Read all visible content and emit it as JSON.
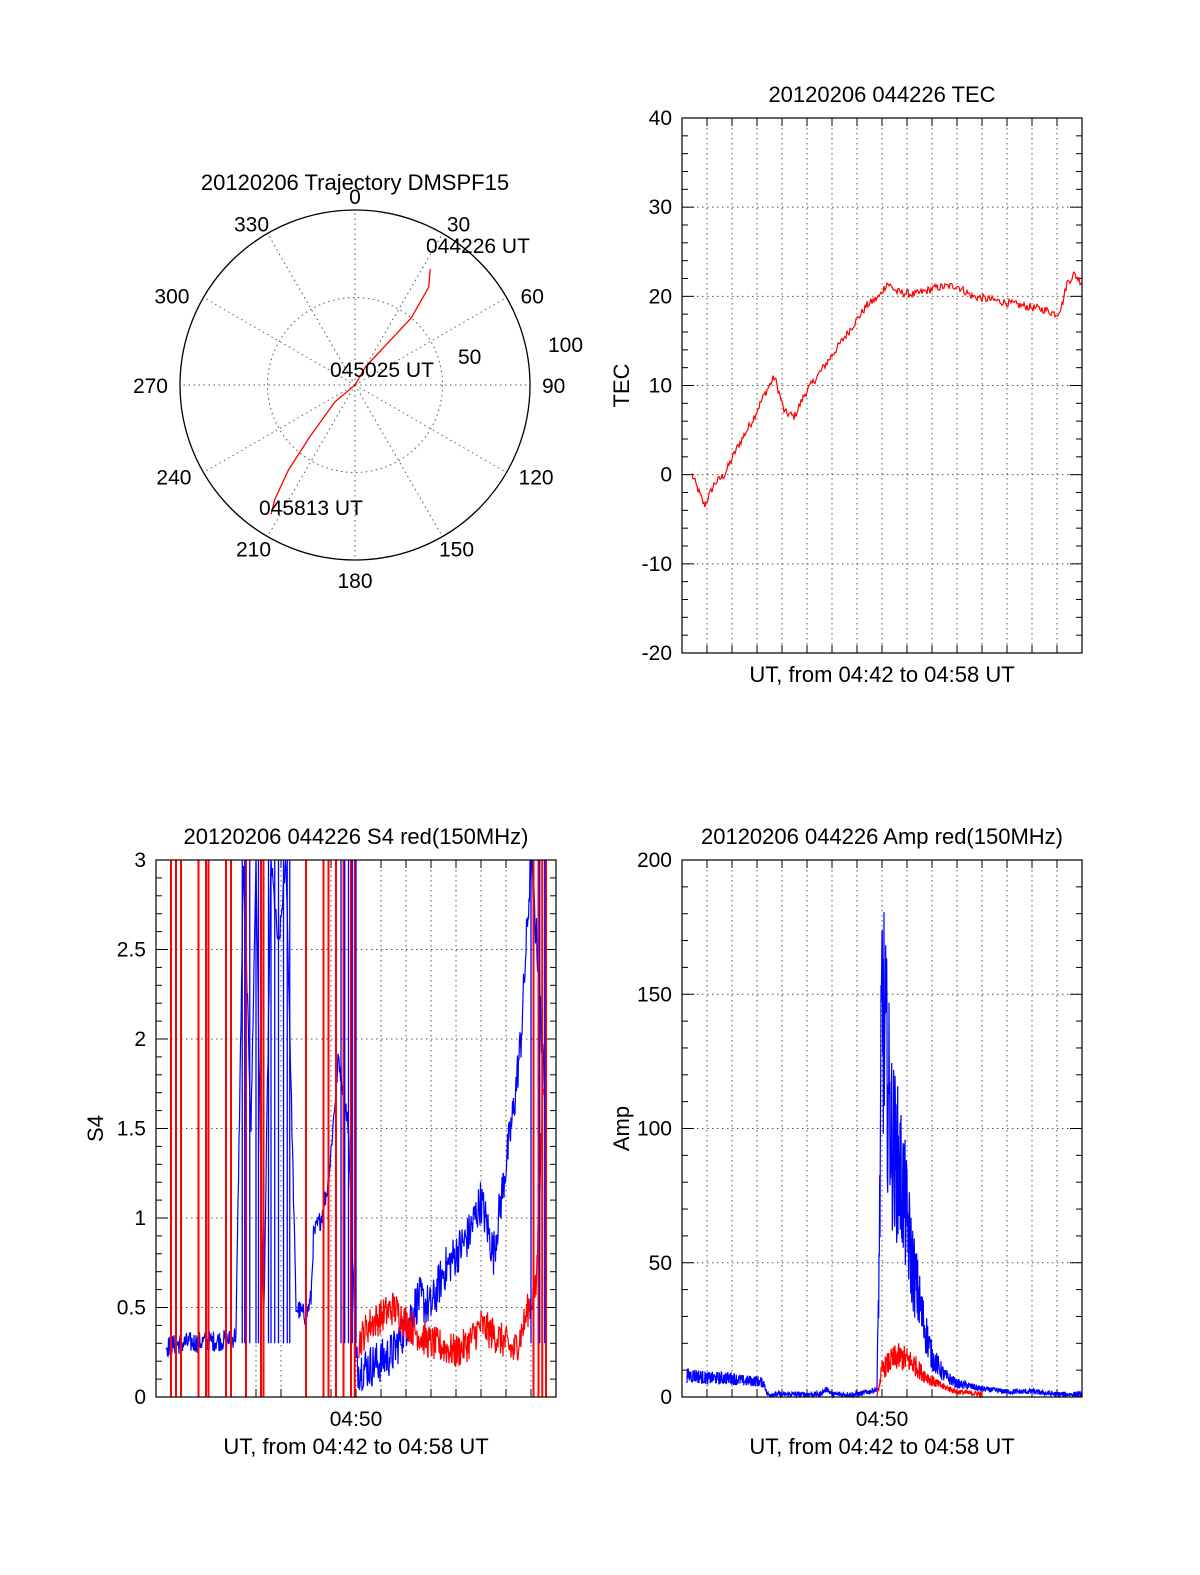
{
  "colors": {
    "red": "#ff0000",
    "blue": "#0000ff",
    "axis": "#000000"
  },
  "chart_data": [
    {
      "type": "scatter",
      "subtype": "polar-trajectory",
      "title": "20120206 Trajectory DMSPF15",
      "angle_labels": [
        "0",
        "30",
        "60",
        "90",
        "120",
        "150",
        "180",
        "210",
        "240",
        "270",
        "300",
        "330"
      ],
      "radius_labels": [
        "50",
        "100"
      ],
      "trajectory": {
        "color": "#ff0000",
        "points": [
          [
            33,
            79
          ],
          [
            37,
            70
          ],
          [
            40,
            50
          ],
          [
            38,
            30
          ],
          [
            30,
            12
          ],
          [
            0,
            0
          ],
          [
            230,
            15
          ],
          [
            221,
            40
          ],
          [
            218,
            62
          ],
          [
            215,
            80
          ],
          [
            213,
            88
          ]
        ]
      },
      "annotations": [
        "044226 UT",
        "045025 UT",
        "045813 UT"
      ]
    },
    {
      "type": "line",
      "title": "20120206 044226 TEC",
      "ylabel": "TEC",
      "xlabel": "UT, from 04:42 to 04:58 UT",
      "ylim": [
        -20,
        40
      ],
      "yticks": [
        "-20",
        "-10",
        "0",
        "10",
        "20",
        "30",
        "40"
      ],
      "xlim": [
        0,
        16
      ],
      "grid": true,
      "series": [
        {
          "color": "#ff0000",
          "x": [
            0.4,
            0.9,
            1.3,
            1.7,
            2.2,
            2.8,
            3.3,
            3.7,
            4.1,
            4.5,
            4.9,
            5.4,
            5.9,
            6.4,
            6.9,
            7.4,
            7.9,
            8.2,
            8.6,
            9.3,
            10.2,
            11,
            11.6,
            12.6,
            13.5,
            14.5,
            15,
            15.2,
            15.4,
            15.7,
            16
          ],
          "y": [
            0,
            -3.5,
            -1,
            0,
            3,
            6,
            9,
            11,
            7,
            6.5,
            9,
            11,
            13,
            15,
            17,
            19,
            20,
            21.5,
            20.5,
            20.2,
            21,
            21.2,
            20,
            19.5,
            19,
            18.5,
            18,
            19,
            21.5,
            22.5,
            21.5
          ]
        }
      ]
    },
    {
      "type": "line",
      "title": "20120206 044226 S4 red(150MHz)",
      "ylabel": "S4",
      "xlabel": "UT, from 04:42 to 04:58 UT",
      "xtick_label": "04:50",
      "ylim": [
        0,
        3
      ],
      "yticks": [
        "0",
        "0.5",
        "1",
        "1.5",
        "2",
        "2.5",
        "3"
      ],
      "xlim": [
        0,
        16
      ],
      "grid": true,
      "series": [
        {
          "color": "#0000ff",
          "x": [
            0.4,
            1,
            2,
            3,
            3.2,
            3.5,
            3.8,
            4,
            4.3,
            4.6,
            4.9,
            5.2,
            5.6,
            6,
            6.2,
            6.3,
            6.6,
            6.9,
            7.3,
            7.7,
            8,
            8.1,
            8.5,
            9,
            9.5,
            10,
            10.5,
            11,
            11.5,
            12,
            12.5,
            13,
            13.5,
            14,
            14.3,
            14.6,
            15,
            15.3,
            15.6
          ],
          "y": [
            0.28,
            0.3,
            0.31,
            0.32,
            0.35,
            3,
            1.5,
            3,
            0.3,
            3,
            2.5,
            3,
            0.5,
            0.45,
            0.55,
            0.9,
            1,
            1.2,
            1.9,
            1.5,
            0.2,
            0.16,
            0.17,
            0.2,
            0.25,
            0.4,
            0.55,
            0.5,
            0.7,
            0.8,
            0.9,
            1.1,
            0.8,
            1.3,
            1.6,
            2,
            3,
            2.4,
            1.5
          ]
        },
        {
          "color": "#ff0000",
          "x": [
            8.1,
            8.5,
            9,
            9.5,
            10,
            10.5,
            11,
            11.5,
            12,
            12.5,
            13,
            13.5,
            14,
            14.3,
            14.6,
            14.9,
            15.2,
            15.5
          ],
          "y": [
            0.3,
            0.4,
            0.45,
            0.5,
            0.42,
            0.35,
            0.3,
            0.28,
            0.25,
            0.3,
            0.4,
            0.35,
            0.3,
            0.25,
            0.35,
            0.5,
            0.6,
            1.8
          ]
        }
      ]
    },
    {
      "type": "line",
      "title": "20120206 044226 Amp red(150MHz)",
      "ylabel": "Amp",
      "xlabel": "UT, from 04:42 to 04:58 UT",
      "xtick_label": "04:50",
      "ylim": [
        0,
        200
      ],
      "yticks": [
        "0",
        "50",
        "100",
        "150",
        "200"
      ],
      "xlim": [
        0,
        16
      ],
      "grid": true,
      "series": [
        {
          "color": "#0000ff",
          "x": [
            0.2,
            0.5,
            1,
            1.5,
            2,
            2.5,
            3,
            3.3,
            3.4,
            4,
            5,
            5.5,
            5.8,
            6,
            7,
            7.5,
            7.8,
            7.9,
            8,
            8.2,
            8.4,
            8.8,
            9.2,
            9.6,
            10,
            10.5,
            11,
            12,
            13,
            14,
            15,
            16
          ],
          "y": [
            8,
            8,
            7,
            7,
            7,
            6,
            6,
            5,
            1,
            1,
            1,
            1,
            3,
            1,
            1,
            2,
            3,
            60,
            150,
            120,
            95,
            80,
            50,
            30,
            15,
            8,
            5,
            3,
            2,
            2,
            1,
            1
          ]
        },
        {
          "color": "#ff0000",
          "x": [
            7.8,
            8,
            8.3,
            8.6,
            9,
            9.3,
            9.6,
            10,
            10.4,
            11,
            12
          ],
          "y": [
            0,
            10,
            13,
            15,
            14,
            12,
            9,
            6,
            4,
            2,
            1
          ]
        }
      ]
    }
  ]
}
